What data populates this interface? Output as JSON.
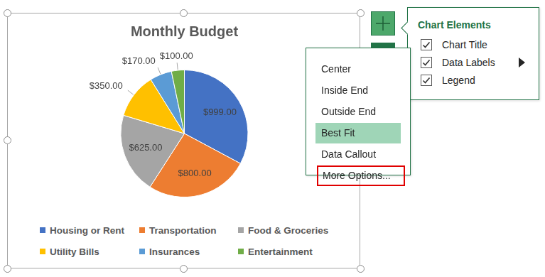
{
  "chart_data": {
    "type": "pie",
    "title": "Monthly Budget",
    "categories": [
      "Housing or Rent",
      "Transportation",
      "Food & Groceries",
      "Utility Bills",
      "Insurances",
      "Entertainment"
    ],
    "values": [
      999,
      800,
      625,
      350,
      170,
      100
    ],
    "value_labels": [
      "$999.00",
      "$800.00",
      "$625.00",
      "$350.00",
      "$170.00",
      "$100.00"
    ],
    "colors": [
      "#4472c4",
      "#ed7d31",
      "#a5a5a5",
      "#ffc000",
      "#5b9bd5",
      "#70ad47"
    ],
    "data_labels": true,
    "legend": "bottom"
  },
  "chart_elements_menu": {
    "title": "Chart Elements",
    "items": [
      {
        "label": "Chart Title",
        "checked": true
      },
      {
        "label": "Data Labels",
        "checked": true,
        "submenu": true
      },
      {
        "label": "Legend",
        "checked": true
      }
    ]
  },
  "data_labels_menu": {
    "items": [
      "Center",
      "Inside End",
      "Outside End",
      "Best Fit",
      "Data Callout",
      "More Options..."
    ],
    "selected": "Best Fit",
    "highlighted": "More Options..."
  }
}
